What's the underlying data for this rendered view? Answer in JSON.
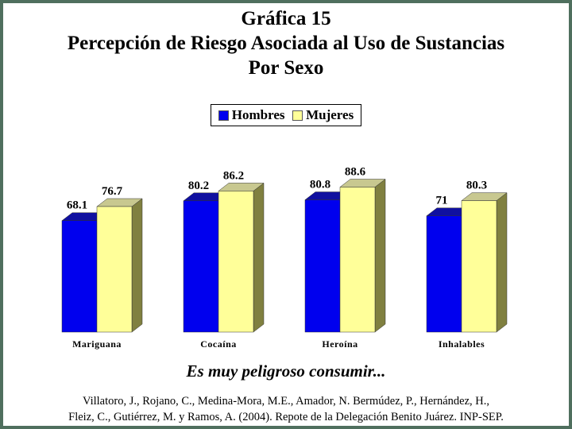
{
  "title_lines": [
    "Gráfica 15",
    "Percepción de Riesgo Asociada al Uso de Sustancias",
    "Por Sexo"
  ],
  "subtitle": "Es muy peligroso consumir...",
  "source_lines": [
    "Villatoro, J., Rojano, C., Medina-Mora, M.E., Amador, N. Bermúdez, P., Hernández, H.,",
    "Fleiz, C., Gutiérrez, M. y Ramos, A. (2004). Repote de la Delegación Benito Juárez. INP-SEP."
  ],
  "colors": {
    "background_border": "#4f6f5e",
    "hombres": "#0000ee",
    "mujeres": "#ffff99",
    "depth_dark": "#808040"
  },
  "chart_data": {
    "type": "bar",
    "title": "Percepción de Riesgo Asociada al Uso de Sustancias",
    "xlabel": "",
    "ylabel": "",
    "categories": [
      "Mariguana",
      "Cocaína",
      "Heroína",
      "Inhalables"
    ],
    "series": [
      {
        "name": "Hombres",
        "values": [
          68.1,
          80.2,
          80.8,
          71
        ],
        "labels": [
          "68.1",
          "80.2",
          "80.8",
          "71"
        ]
      },
      {
        "name": "Mujeres",
        "values": [
          76.7,
          86.2,
          88.6,
          80.3
        ],
        "labels": [
          "76.7",
          "86.2",
          "88.6",
          "80.3"
        ]
      }
    ],
    "ylim": [
      0,
      100
    ],
    "grid": false,
    "legend_position": "top-center",
    "bar_style": "3d"
  }
}
